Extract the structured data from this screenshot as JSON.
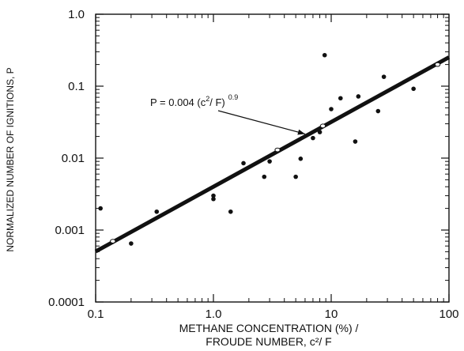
{
  "chart_data": {
    "type": "scatter",
    "title": "",
    "xscale": "log",
    "yscale": "log",
    "xlim": [
      0.1,
      100
    ],
    "ylim": [
      0.0001,
      1
    ],
    "grid": false,
    "x_tick_labels": [
      "0.1",
      "1.0",
      "10",
      "100"
    ],
    "y_tick_labels": [
      "0.0001",
      "0.001",
      "0.01",
      "0.1",
      "1.0"
    ],
    "xlabel_line1": "METHANE CONCENTRATION (%) /",
    "xlabel_line2": "FROUDE NUMBER, c²/ F",
    "ylabel": "NORMALIZED NUMBER OF IGNITIONS, P",
    "annotation": {
      "base": "P = 0.004 (c",
      "sup1": "2",
      "middle": "/ F)",
      "sup2": "0.9",
      "arrow_target_x": 6.0
    },
    "fit_line": {
      "coefficient": 0.004,
      "exponent": 0.9
    },
    "series": [
      {
        "values": [
          {
            "x": 0.11,
            "y": 0.002
          },
          {
            "x": 0.2,
            "y": 0.00065
          },
          {
            "x": 0.33,
            "y": 0.0018
          },
          {
            "x": 1.0,
            "y": 0.003
          },
          {
            "x": 1.0,
            "y": 0.0027
          },
          {
            "x": 1.4,
            "y": 0.0018
          },
          {
            "x": 1.8,
            "y": 0.0085
          },
          {
            "x": 2.7,
            "y": 0.0055
          },
          {
            "x": 3.0,
            "y": 0.009
          },
          {
            "x": 5.0,
            "y": 0.0055
          },
          {
            "x": 5.5,
            "y": 0.0098
          },
          {
            "x": 7.0,
            "y": 0.019
          },
          {
            "x": 8.0,
            "y": 0.023
          },
          {
            "x": 8.8,
            "y": 0.27
          },
          {
            "x": 10.0,
            "y": 0.048
          },
          {
            "x": 12.0,
            "y": 0.068
          },
          {
            "x": 16.0,
            "y": 0.017
          },
          {
            "x": 17.0,
            "y": 0.072
          },
          {
            "x": 25.0,
            "y": 0.045
          },
          {
            "x": 28.0,
            "y": 0.135
          },
          {
            "x": 50.0,
            "y": 0.092
          }
        ]
      }
    ],
    "highlighted_points": [
      {
        "x": 0.14,
        "y": 0.0007
      },
      {
        "x": 3.5,
        "y": 0.013
      },
      {
        "x": 8.5,
        "y": 0.028
      },
      {
        "x": 80.0,
        "y": 0.2
      }
    ]
  }
}
